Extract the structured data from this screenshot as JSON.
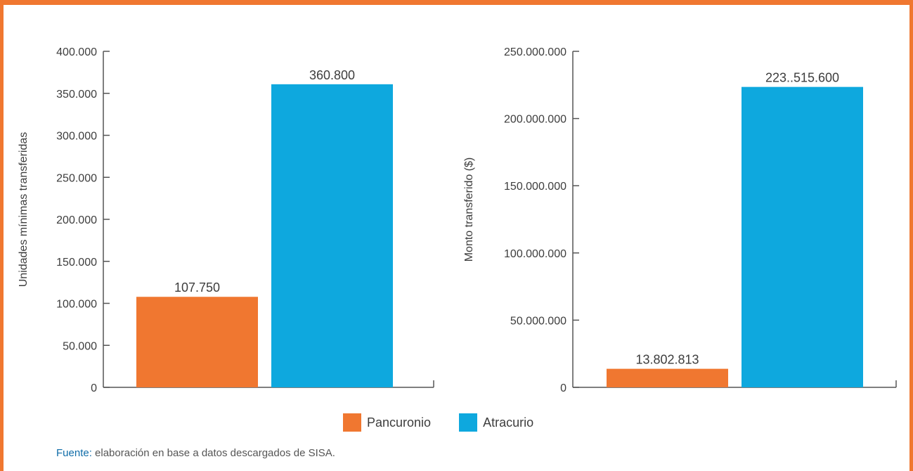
{
  "colors": {
    "frame": "#f07730",
    "Pancuronio": "#f07730",
    "Atracurio": "#0ea8de"
  },
  "chart_data": [
    {
      "type": "bar",
      "categories": [
        "Pancuronio",
        "Atracurio"
      ],
      "values": [
        107750,
        360800
      ],
      "data_labels": [
        "107.750",
        "360.800"
      ],
      "ylabel": "Unidades mínimas transferidas",
      "ylim": [
        0,
        400000
      ],
      "yticks": [
        0,
        50000,
        100000,
        150000,
        200000,
        250000,
        300000,
        350000,
        400000
      ],
      "ytick_labels": [
        "0",
        "50.000",
        "100.000",
        "150.000",
        "200.000",
        "250.000",
        "300.000",
        "350.000",
        "400.000"
      ],
      "grid": false
    },
    {
      "type": "bar",
      "categories": [
        "Pancuronio",
        "Atracurio"
      ],
      "values": [
        13802813,
        223515600
      ],
      "data_labels": [
        "13.802.813",
        "223..515.600"
      ],
      "ylabel": "Monto transferido ($)",
      "ylim": [
        0,
        250000000
      ],
      "yticks": [
        0,
        50000000,
        100000000,
        150000000,
        200000000,
        250000000
      ],
      "ytick_labels": [
        "0",
        "50.000.000",
        "100.000.000",
        "150.000.000",
        "200.000.000",
        "250.000.000"
      ],
      "grid": false
    }
  ],
  "legend": {
    "position": "bottom-center",
    "items": [
      {
        "label": "Pancuronio",
        "color": "#f07730"
      },
      {
        "label": "Atracurio",
        "color": "#0ea8de"
      }
    ]
  },
  "source": {
    "label": "Fuente:",
    "text": " elaboración en base a datos descargados de SISA."
  }
}
